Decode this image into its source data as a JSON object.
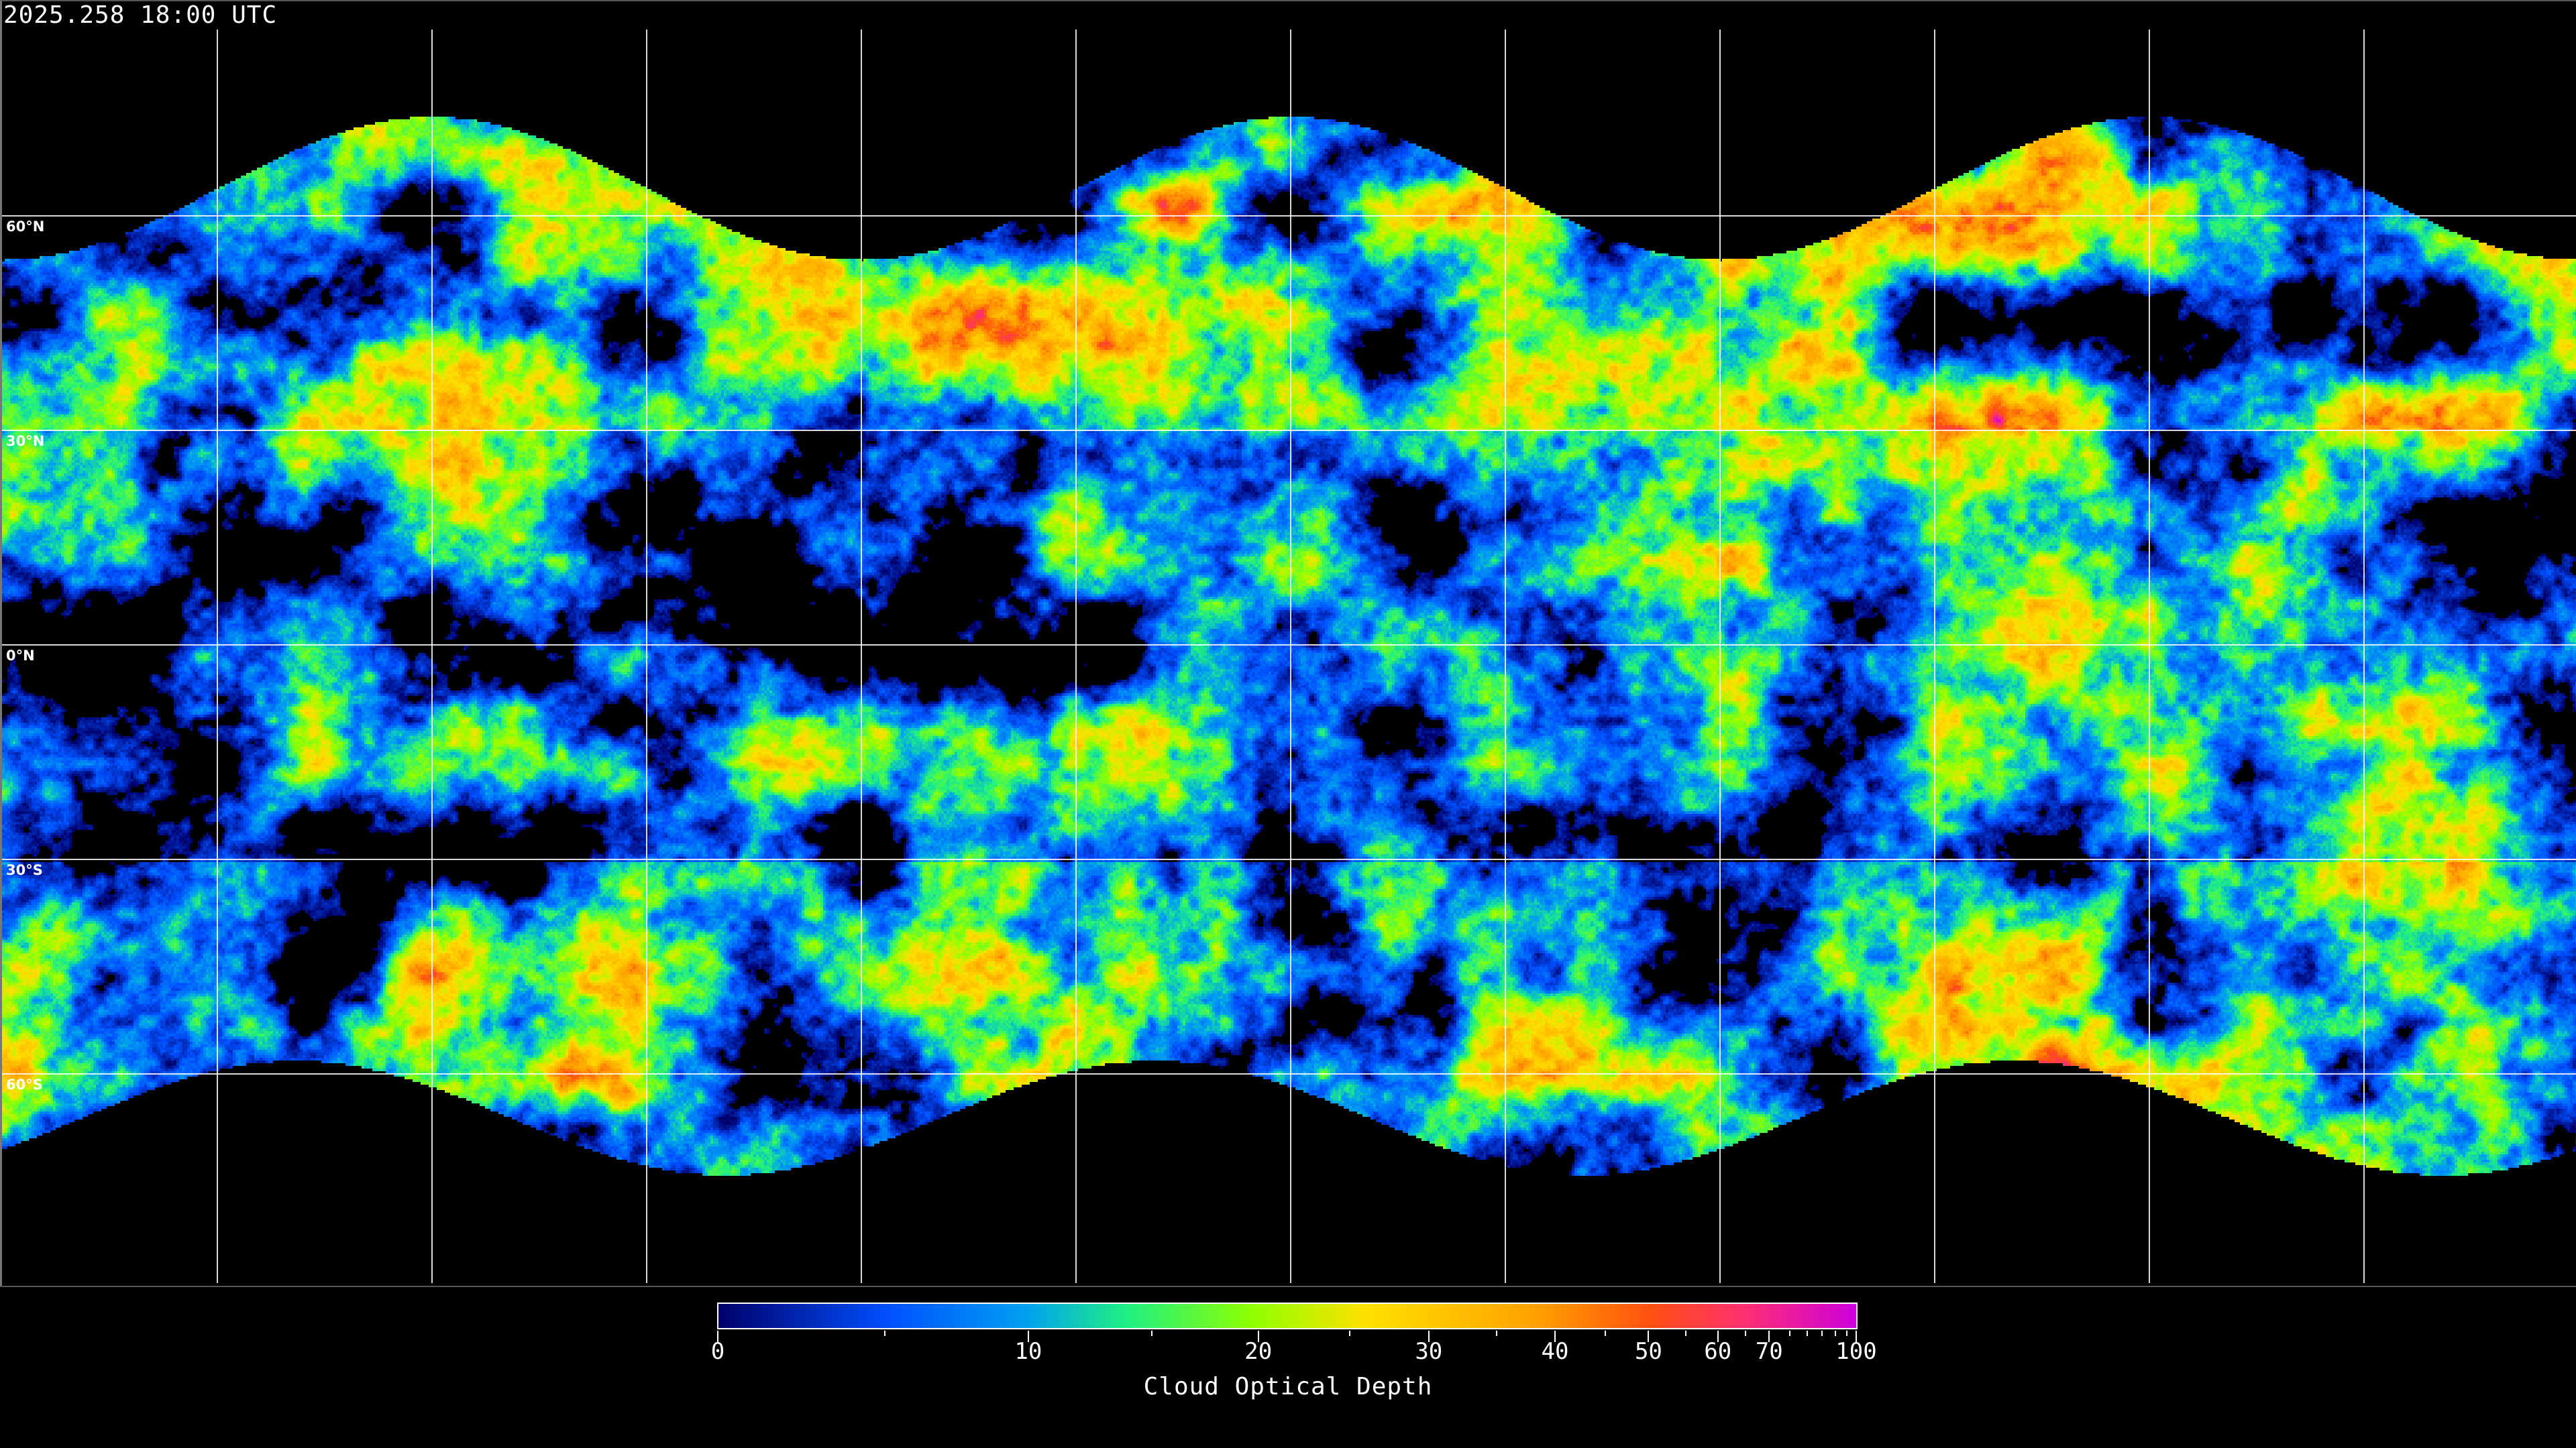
{
  "header": {
    "timestamp": "2025.258 18:00 UTC"
  },
  "map": {
    "projection": "equirectangular",
    "grid_spacing_degrees": 30,
    "latitude_labels": [
      {
        "lat": 60,
        "text": "60°N"
      },
      {
        "lat": 30,
        "text": "30°N"
      },
      {
        "lat": 0,
        "text": "0°N"
      },
      {
        "lat": -30,
        "text": "30°S"
      },
      {
        "lat": -60,
        "text": "60°S"
      }
    ]
  },
  "colorbar": {
    "label": "Cloud Optical Depth",
    "range": [
      0,
      100
    ],
    "major_ticks": [
      {
        "value": 0,
        "text": "0"
      },
      {
        "value": 10,
        "text": "10"
      },
      {
        "value": 20,
        "text": "20"
      },
      {
        "value": 30,
        "text": "30"
      },
      {
        "value": 40,
        "text": "40"
      },
      {
        "value": 50,
        "text": "50"
      },
      {
        "value": 60,
        "text": "60"
      },
      {
        "value": 70,
        "text": "70"
      },
      {
        "value": 100,
        "text": "100"
      }
    ],
    "minor_ticks": [
      5,
      15,
      25,
      35,
      45,
      55,
      65,
      75,
      80,
      85,
      90,
      95
    ],
    "colors": [
      "#00006a",
      "#0050ff",
      "#00a0f0",
      "#20f080",
      "#90ff00",
      "#ffe000",
      "#ffa000",
      "#ff5010",
      "#ff3070",
      "#cc00dd"
    ]
  }
}
